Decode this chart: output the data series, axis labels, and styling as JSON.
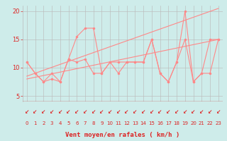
{
  "xlabel": "Vent moyen/en rafales ( km/h )",
  "bg_color": "#ceecea",
  "line_color": "#ff8888",
  "grid_color": "#bbbbbb",
  "axis_color": "#888888",
  "text_color": "#dd2222",
  "red_line_color": "#cc2222",
  "xlim": [
    -0.5,
    23.5
  ],
  "ylim": [
    4.0,
    21.0
  ],
  "yticks": [
    5,
    10,
    15,
    20
  ],
  "xticks": [
    0,
    1,
    2,
    3,
    4,
    5,
    6,
    7,
    8,
    9,
    10,
    11,
    12,
    13,
    14,
    15,
    16,
    17,
    18,
    19,
    20,
    21,
    22,
    23
  ],
  "line1_x": [
    0,
    1,
    2,
    3,
    4,
    5,
    6,
    7,
    8,
    9,
    10,
    11,
    12,
    13,
    14,
    15,
    16,
    17,
    18,
    19,
    20,
    21,
    22,
    23
  ],
  "line1_y": [
    11,
    9,
    7.5,
    9,
    7.5,
    11.5,
    15.5,
    17,
    17,
    9,
    11,
    9,
    11,
    11,
    11,
    15,
    9,
    7.5,
    11,
    20,
    7.5,
    9,
    15,
    15
  ],
  "line2_x": [
    0,
    1,
    2,
    3,
    4,
    5,
    6,
    7,
    8,
    9,
    10,
    11,
    12,
    13,
    14,
    15,
    16,
    17,
    18,
    19,
    20,
    21,
    22,
    23
  ],
  "line2_y": [
    11,
    9,
    7.5,
    8,
    7.5,
    11.5,
    11,
    11.5,
    9,
    9,
    11,
    11,
    11,
    11,
    11,
    15,
    9,
    7.5,
    11,
    15,
    7.5,
    9,
    9,
    15
  ],
  "line3_x": [
    0,
    23
  ],
  "line3_y": [
    8.5,
    20.5
  ],
  "line4_x": [
    0,
    23
  ],
  "line4_y": [
    8.0,
    15.0
  ]
}
